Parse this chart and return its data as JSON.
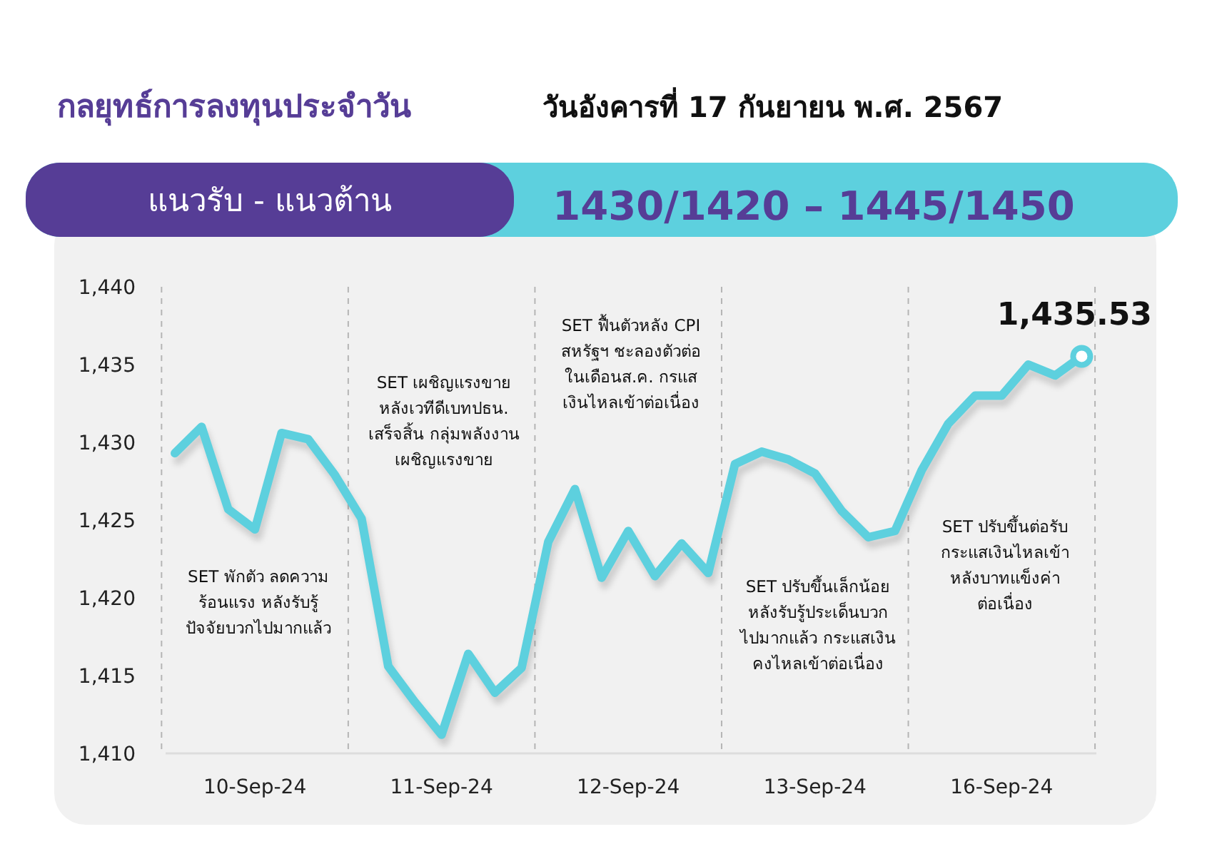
{
  "chart_data": {
    "type": "line",
    "title": "กลยุทธ์การลงทุนประจำวัน",
    "subtitle": "วันอังคารที่ 17 กันยายน พ.ศ. 2567",
    "categories": [
      null,
      null,
      null,
      "10-Sep-24",
      null,
      null,
      null,
      null,
      null,
      null,
      "11-Sep-24",
      null,
      null,
      null,
      null,
      null,
      null,
      "12-Sep-24",
      null,
      null,
      null,
      null,
      null,
      null,
      "13-Sep-24",
      null,
      null,
      null,
      null,
      null,
      null,
      "16-Sep-24",
      null,
      null,
      null
    ],
    "series": [
      {
        "color": "#5dd0de",
        "values": [
          1429.3,
          1431.0,
          1425.7,
          1424.4,
          1430.6,
          1430.2,
          1427.9,
          1425.1,
          1415.6,
          1413.3,
          1411.2,
          1416.4,
          1413.9,
          1415.5,
          1423.6,
          1427.0,
          1421.3,
          1424.3,
          1421.4,
          1423.5,
          1421.6,
          1428.6,
          1429.4,
          1428.9,
          1428.0,
          1425.6,
          1423.9,
          1424.3,
          1428.2,
          1431.2,
          1433.0,
          1433.0,
          1435.0,
          1434.3,
          1435.53
        ]
      }
    ],
    "ylim": [
      1410,
      1440
    ],
    "yticks": [
      {
        "value": 1410,
        "label": "1,410"
      },
      {
        "value": 1415,
        "label": "1,415"
      },
      {
        "value": 1420,
        "label": "1,420"
      },
      {
        "value": 1425,
        "label": "1,425"
      },
      {
        "value": 1430,
        "label": "1,430"
      },
      {
        "value": 1435,
        "label": "1,435"
      },
      {
        "value": 1440,
        "label": "1,440"
      }
    ],
    "annotations": [
      "แนวรับ - แนวต้าน",
      "1430/1420 – 1445/1450",
      "SET พักตัว ลดความ\nร้อนแรง หลังรับรู้\nปัจจัยบวกไปมากแล้ว",
      "SET เผชิญแรงขาย\nหลังเวทีดีเบทปธน.\nเสร็จสิ้น กลุ่มพลังงาน\nเผชิญแรงขาย",
      "SET ฟื้นตัวหลัง CPI\nสหรัฐฯ ชะลองตัวต่อ\nในเดือนส.ค. กรแส\nเงินไหลเข้าต่อเนื่อง",
      "SET ปรับขึ้นเล็กน้อย\nหลังรับรู้ประเด็นบวก\nไปมากแล้ว กระแสเงิน\nคงไหลเข้าต่อเนื่อง",
      "SET ปรับขึ้นต่อรับ\nกระแสเงินไหลเข้า\nหลังบาทแข็งค่า\nต่อเนื่อง",
      "1,435.53"
    ],
    "grid": "x",
    "marker": "none",
    "line_style": "solid"
  }
}
